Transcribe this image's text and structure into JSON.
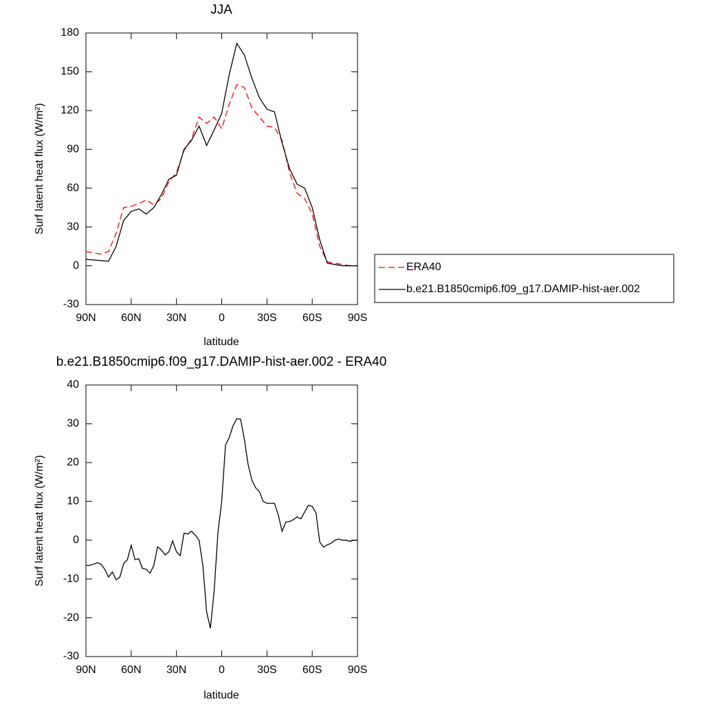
{
  "chart_data": [
    {
      "type": "line",
      "title": "JJA",
      "xlabel": "latitude",
      "ylabel": "Surf latent heat flux (W/m²)",
      "x": [
        90,
        85,
        80,
        75,
        70,
        65,
        60,
        55,
        50,
        45,
        40,
        35,
        30,
        25,
        20,
        15,
        10,
        5,
        0,
        -5,
        -10,
        -15,
        -20,
        -25,
        -30,
        -35,
        -40,
        -45,
        -50,
        -55,
        -60,
        -65,
        -70,
        -75,
        -80,
        -85,
        -90
      ],
      "series": [
        {
          "name": "ERA40",
          "color": "#ff0000",
          "linestyle": "dashed",
          "values": [
            11,
            10,
            9,
            11,
            25,
            45,
            46,
            48,
            51,
            47,
            52,
            65,
            72,
            89,
            98,
            115,
            110,
            115,
            106,
            125,
            140,
            138,
            122,
            115,
            108,
            107,
            97,
            72,
            56,
            52,
            40,
            15,
            3,
            2,
            1,
            0,
            0
          ]
        },
        {
          "name": "b.e21.B1850cmip6.f09_g17.DAMIP-hist-aer.002",
          "color": "#000000",
          "linestyle": "solid",
          "values": [
            5,
            4.5,
            4,
            3.5,
            15,
            35,
            42,
            44,
            40,
            45,
            55,
            67,
            70,
            90,
            97,
            108,
            93,
            105,
            118,
            148,
            172,
            163,
            145,
            130,
            121,
            119,
            95,
            75,
            63,
            60,
            45,
            20,
            2,
            1,
            0,
            0,
            0
          ]
        }
      ],
      "xlim": [
        90,
        -90
      ],
      "xticks": [
        {
          "value": 90,
          "label": "90N"
        },
        {
          "value": 60,
          "label": "60N"
        },
        {
          "value": 30,
          "label": "30N"
        },
        0,
        {
          "value": -30,
          "label": "30S"
        },
        {
          "value": -60,
          "label": "60S"
        },
        {
          "value": -90,
          "label": "90S"
        }
      ],
      "ylim": [
        -30,
        180
      ],
      "yticks": [
        -30,
        0,
        30,
        60,
        90,
        120,
        150,
        180
      ],
      "legend": "right"
    },
    {
      "type": "line",
      "title": "b.e21.B1850cmip6.f09_g17.DAMIP-hist-aer.002 - ERA40",
      "xlabel": "latitude",
      "ylabel": "Surf latent heat flux (W/m²)",
      "x": [
        90,
        87.5,
        85,
        82.5,
        80,
        77.5,
        75,
        72.5,
        70,
        67.5,
        65,
        62.5,
        60,
        57.5,
        55,
        52.5,
        50,
        47.5,
        45,
        42.5,
        40,
        37.5,
        35,
        32.5,
        30,
        27.5,
        25,
        22.5,
        20,
        17.5,
        15,
        12.5,
        10,
        7.5,
        5,
        2.5,
        0,
        -2.5,
        -5,
        -7.5,
        -10,
        -12.5,
        -15,
        -17.5,
        -20,
        -22.5,
        -25,
        -27.5,
        -30,
        -32.5,
        -35,
        -37.5,
        -40,
        -42.5,
        -45,
        -47.5,
        -50,
        -52.5,
        -55,
        -57.5,
        -60,
        -62.5,
        -65,
        -67.5,
        -70,
        -72.5,
        -75,
        -77.5,
        -80,
        -82.5,
        -85,
        -87.5,
        -90
      ],
      "values": [
        -6.5,
        -6.5,
        -6.2,
        -5.8,
        -6.2,
        -7.5,
        -9.5,
        -8.2,
        -10.2,
        -9.5,
        -6,
        -5,
        -1.3,
        -5,
        -4.8,
        -7.3,
        -7.5,
        -8.5,
        -6.5,
        -1.7,
        -2.5,
        -3.8,
        -3,
        -0.2,
        -3,
        -4,
        1.8,
        1.6,
        2.3,
        1.3,
        0,
        -6.5,
        -18.5,
        -22.7,
        -13,
        2,
        10,
        24.5,
        26.5,
        29.5,
        31.3,
        31.2,
        26,
        19.5,
        15.5,
        13.5,
        12.5,
        10,
        9.5,
        9.5,
        9.5,
        6.5,
        2.3,
        4.7,
        4.8,
        5.3,
        6,
        5.5,
        7.3,
        9,
        8.7,
        7,
        -0.5,
        -1.8,
        -1.2,
        -0.8,
        0,
        0.3,
        0,
        0,
        -0.3,
        0,
        0
      ],
      "color": "#000000",
      "xlim": [
        90,
        -90
      ],
      "xticks": [
        {
          "value": 90,
          "label": "90N"
        },
        {
          "value": 60,
          "label": "60N"
        },
        {
          "value": 30,
          "label": "30N"
        },
        0,
        {
          "value": -30,
          "label": "30S"
        },
        {
          "value": -60,
          "label": "60S"
        },
        {
          "value": -90,
          "label": "90S"
        }
      ],
      "ylim": [
        -30,
        40
      ],
      "yticks": [
        -30,
        -20,
        -10,
        0,
        10,
        20,
        30,
        40
      ]
    }
  ]
}
